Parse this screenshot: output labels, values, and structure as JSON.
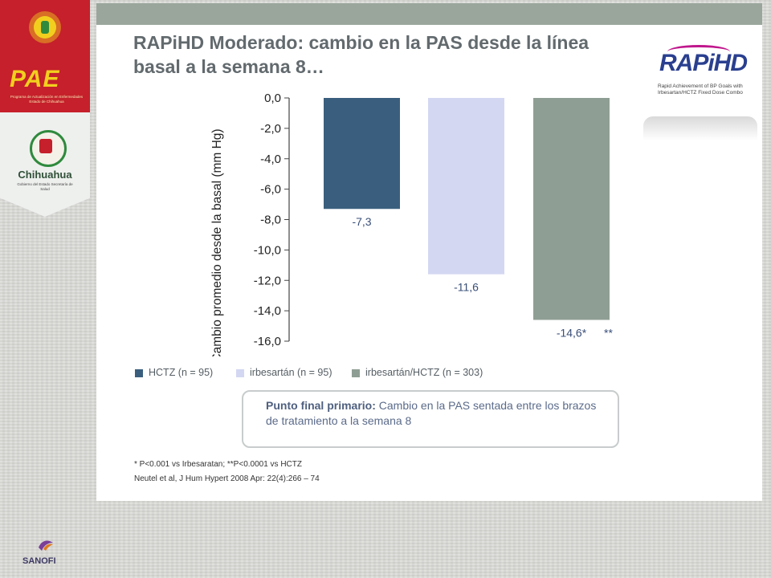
{
  "slide": {
    "title": "RAPiHD Moderado: cambio en la PAS desde la línea basal a la semana 8…"
  },
  "logo": {
    "name": "RAPiHD",
    "subtitle": "Rapid Achievement of BP Goals with Irbesartan/HCTZ Fixed Dose Combo"
  },
  "sidebar": {
    "pae_name": "PAE",
    "pae_subtitle": "Programa de Actualización en Enfermedades Estado de Chihuahua",
    "state_name": "Chihuahua",
    "state_subtitle": "Gobierno del Estado Secretaría de Salud"
  },
  "chart_data": {
    "type": "bar",
    "title": "",
    "ylabel": "Cambio promedio desde la basal (mm Hg)",
    "ylim": [
      -16,
      0
    ],
    "yticks": [
      0,
      -2,
      -4,
      -6,
      -8,
      -10,
      -12,
      -14,
      -16
    ],
    "ytick_labels": [
      "0,0",
      "-2,0",
      "-4,0",
      "-6,0",
      "-8,0",
      "-10,0",
      "-12,0",
      "-14,0",
      "-16,0"
    ],
    "series": [
      {
        "name": "HCTZ (n = 95)",
        "value": -7.3,
        "label": "-7,3",
        "color": "#3a5f7e"
      },
      {
        "name": "irbesartán (n = 95)",
        "value": -11.6,
        "label": "-11,6",
        "color": "#d3d7f1"
      },
      {
        "name": "irbesartán/HCTZ (n = 303)",
        "value": -14.6,
        "label": "-14,6*",
        "label_extra": "**",
        "color": "#8f9e94"
      }
    ],
    "grid": false,
    "legend_position": "bottom"
  },
  "endpoint": {
    "heading": "Punto final primario:",
    "text": " Cambio en la PAS sentada entre los brazos de tratamiento a la semana 8"
  },
  "footnotes": {
    "significance": "* P<0.001 vs Irbesaratan; **P<0.0001 vs  HCTZ",
    "reference": "Neutel et al, J Hum Hypert 2008 Apr: 22(4):266 – 74"
  },
  "brand": {
    "sanofi": "SANOFI",
    "colors": {
      "banner_red": "#c5202b",
      "banner_gold": "#f2cf1e",
      "title_gray": "#626a6e"
    }
  }
}
